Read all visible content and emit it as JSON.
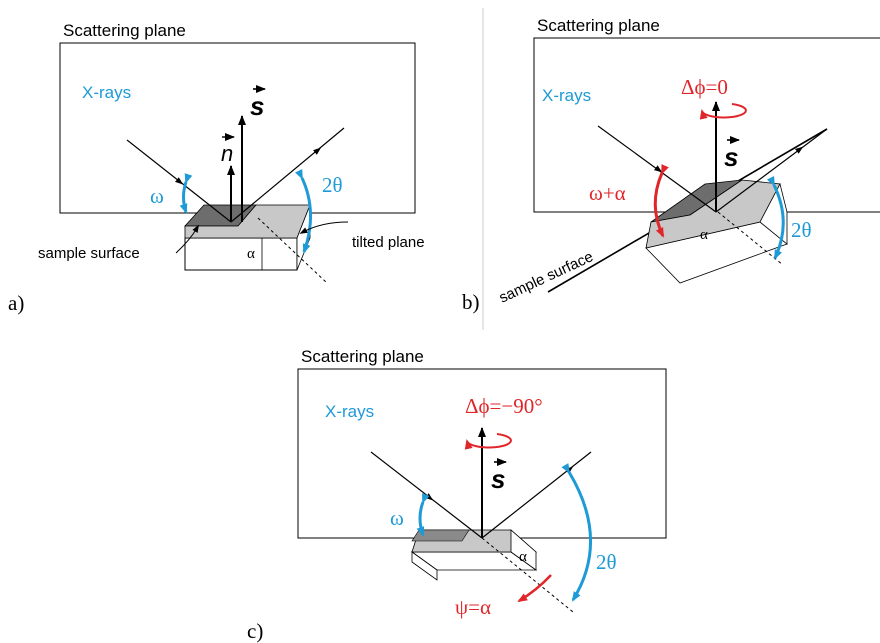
{
  "colors": {
    "blue": "#1e9ad6",
    "red": "#e0262a",
    "black": "#000000",
    "dark_face": "#6d6d6d",
    "light_face": "#c8c8c8"
  },
  "panels": [
    {
      "id": "a",
      "panel_label": "a)",
      "plane_title": "Scattering plane",
      "xrays_label": "X-rays",
      "s_label": "s",
      "n_label": "n",
      "omega_label": "ω",
      "two_theta_label": "2θ",
      "alpha_label": "α",
      "sample_surface_label": "sample surface",
      "tilted_plane_label": "tilted plane"
    },
    {
      "id": "b",
      "panel_label": "b)",
      "plane_title": "Scattering plane",
      "xrays_label": "X-rays",
      "s_label": "s",
      "delta_phi_label": "Δϕ=0",
      "omega_alpha_label": "ω+α",
      "two_theta_label": "2θ",
      "alpha_label": "α",
      "sample_surface_label": "sample surface"
    },
    {
      "id": "c",
      "panel_label": "c)",
      "plane_title": "Scattering plane",
      "xrays_label": "X-rays",
      "s_label": "s",
      "delta_phi_label": "Δϕ=−90°",
      "omega_label": "ω",
      "two_theta_label": "2θ",
      "alpha_label": "α",
      "psi_label": "ψ=α"
    }
  ]
}
